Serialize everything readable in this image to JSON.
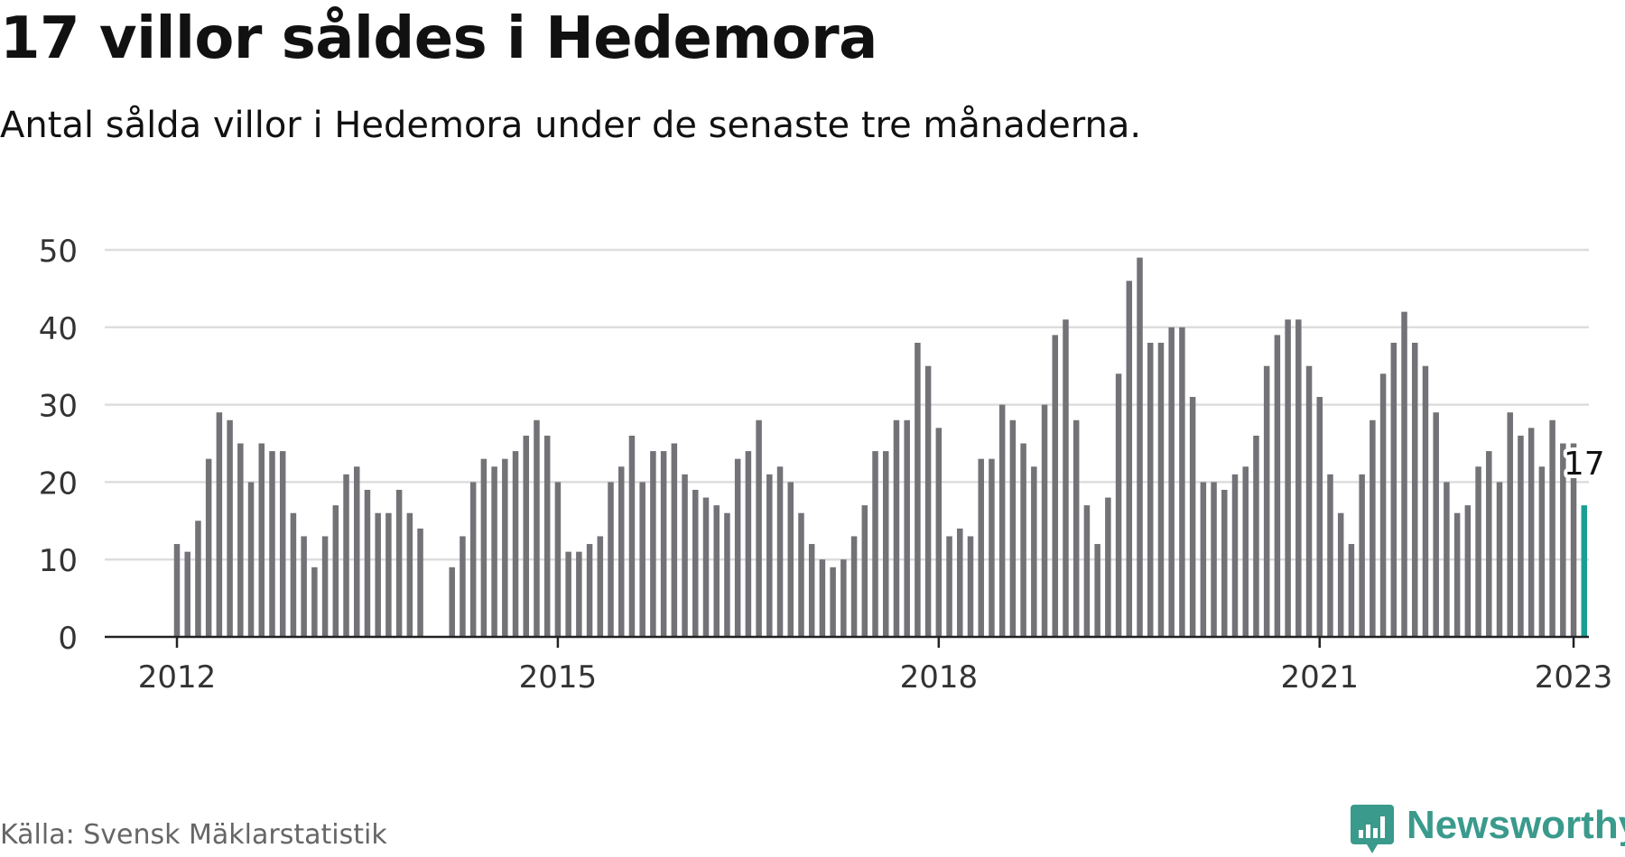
{
  "header": {
    "title": "17 villor såldes i Hedemora",
    "subtitle": "Antal sålda villor i Hedemora under de senaste tre månaderna."
  },
  "footer": {
    "source": "Källa: Svensk Mäklarstatistik",
    "brand": "Newsworthy"
  },
  "colors": {
    "bar": "#737277",
    "highlight": "#1a9e94",
    "grid": "#dddddd",
    "axis": "#222222",
    "brand": "#3a9a8c"
  },
  "icons": {
    "brand_logo": "bar-chart-speech-bubble-icon"
  },
  "chart_data": {
    "type": "bar",
    "title": "17 villor såldes i Hedemora",
    "subtitle": "Antal sålda villor i Hedemora under de senaste tre månaderna.",
    "xlabel": "",
    "ylabel": "",
    "ylim": [
      0,
      50
    ],
    "yticks": [
      0,
      10,
      20,
      30,
      40,
      50
    ],
    "xticks": [
      "2012",
      "2015",
      "2018",
      "2021",
      "2023"
    ],
    "grid": true,
    "start": "2012-01",
    "end": "2023-01",
    "highlight_label": "17",
    "values": [
      12,
      11,
      15,
      23,
      29,
      28,
      25,
      20,
      25,
      24,
      24,
      16,
      13,
      9,
      13,
      17,
      21,
      22,
      19,
      16,
      16,
      19,
      16,
      14,
      null,
      null,
      9,
      13,
      20,
      23,
      22,
      23,
      24,
      26,
      28,
      26,
      20,
      11,
      11,
      12,
      13,
      20,
      22,
      26,
      20,
      24,
      24,
      25,
      21,
      19,
      18,
      17,
      16,
      23,
      24,
      28,
      21,
      22,
      20,
      16,
      12,
      10,
      9,
      10,
      13,
      17,
      24,
      24,
      28,
      28,
      38,
      35,
      27,
      13,
      14,
      13,
      23,
      23,
      30,
      28,
      25,
      22,
      30,
      39,
      41,
      28,
      17,
      12,
      18,
      34,
      46,
      49,
      38,
      38,
      40,
      40,
      31,
      20,
      20,
      19,
      21,
      22,
      26,
      35,
      39,
      41,
      41,
      35,
      31,
      21,
      16,
      12,
      21,
      28,
      34,
      38,
      42,
      38,
      35,
      29,
      20,
      16,
      17,
      22,
      24,
      20,
      29,
      26,
      27,
      22,
      28,
      25,
      25,
      17
    ]
  }
}
